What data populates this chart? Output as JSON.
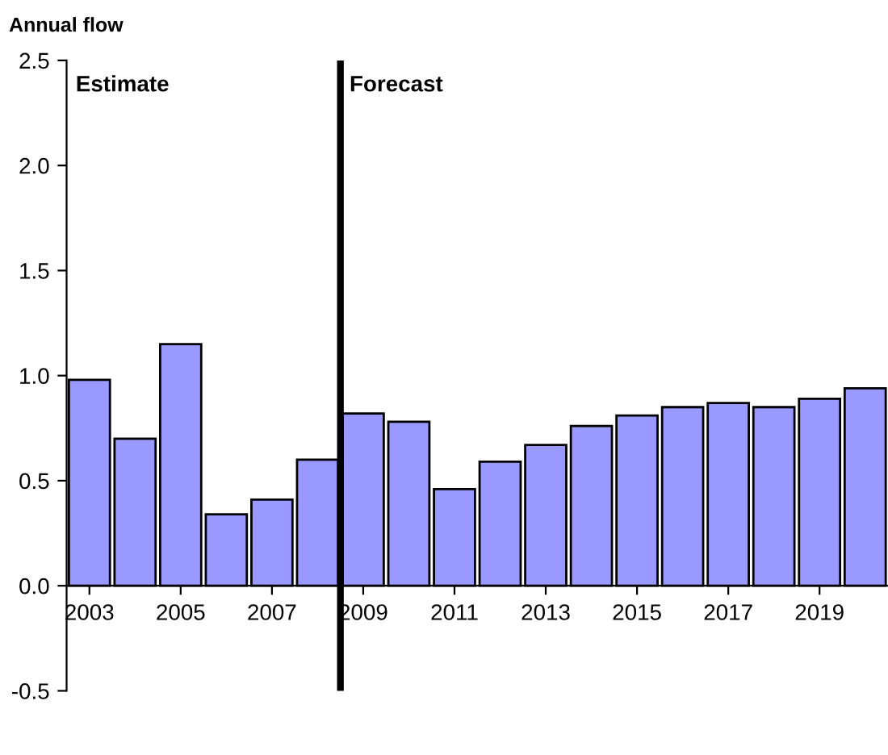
{
  "chart_data": {
    "type": "bar",
    "ylabel": "Annual flow",
    "x": [
      2003,
      2004,
      2005,
      2006,
      2007,
      2008,
      2009,
      2010,
      2011,
      2012,
      2013,
      2014,
      2015,
      2016,
      2017,
      2018,
      2019,
      2020
    ],
    "values": [
      0.98,
      0.7,
      1.15,
      0.34,
      0.41,
      0.6,
      0.82,
      0.78,
      0.46,
      0.59,
      0.67,
      0.76,
      0.81,
      0.85,
      0.87,
      0.85,
      0.89,
      0.94
    ],
    "color": "#9999ff",
    "xlim": [
      2002.5,
      2020.5
    ],
    "xticks": [
      2003,
      2005,
      2007,
      2009,
      2011,
      2013,
      2015,
      2017,
      2019
    ],
    "ylim": [
      -0.5,
      2.5
    ],
    "yticks": [
      {
        "value": -0.5,
        "label": "-0.5"
      },
      {
        "value": 0,
        "label": "0.0"
      },
      {
        "value": 0.5,
        "label": "0.5"
      },
      {
        "value": 1,
        "label": "1.0"
      },
      {
        "value": 1.5,
        "label": "1.5"
      },
      {
        "value": 2,
        "label": "2.0"
      },
      {
        "value": 2.5,
        "label": "2.5"
      }
    ],
    "ref_lines": [
      {
        "axis": "x",
        "value": 2008.5,
        "color": "#000000"
      }
    ],
    "annotations": [
      "Estimate",
      "Forecast"
    ],
    "grid": false,
    "legend": false
  }
}
